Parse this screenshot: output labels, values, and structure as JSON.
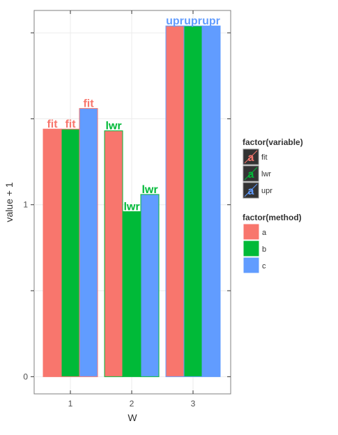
{
  "chart_data": {
    "type": "bar",
    "xlabel": "W",
    "ylabel": "value + 1",
    "categories": [
      "1",
      "2",
      "3"
    ],
    "x_ticks": [
      "1",
      "2",
      "3"
    ],
    "y_ticks": [
      {
        "value": 0,
        "label": "0"
      },
      {
        "value": 1,
        "label": "1"
      }
    ],
    "ylim": [
      -0.1,
      2.13
    ],
    "grid": true,
    "legend_position": "right",
    "series": [
      {
        "method": "a",
        "color": "#F8766D",
        "values": [
          1.44,
          1.43,
          2.04
        ]
      },
      {
        "method": "b",
        "color": "#00BA38",
        "values": [
          1.44,
          0.96,
          2.04
        ]
      },
      {
        "method": "c",
        "color": "#619CFF",
        "values": [
          1.56,
          1.06,
          2.04
        ]
      }
    ],
    "bar_borders": [
      "#F8766D",
      "#00BA38",
      "#619CFF"
    ],
    "bar_labels": [
      [
        "fit",
        "fit",
        "fit"
      ],
      [
        "lwr",
        "lwr",
        "lwr"
      ],
      [
        "upr",
        "upr",
        "upr"
      ]
    ],
    "label_colors": [
      "#F8766D",
      "#00BA38",
      "#619CFF"
    ],
    "legends": [
      {
        "title": "factor(variable)",
        "kind": "text-key",
        "items": [
          {
            "label": "fit",
            "color": "#F8766D"
          },
          {
            "label": "lwr",
            "color": "#00BA38"
          },
          {
            "label": "upr",
            "color": "#619CFF"
          }
        ]
      },
      {
        "title": "factor(method)",
        "kind": "fill-key",
        "items": [
          {
            "label": "a",
            "color": "#F8766D"
          },
          {
            "label": "b",
            "color": "#00BA38"
          },
          {
            "label": "c",
            "color": "#619CFF"
          }
        ]
      }
    ]
  }
}
